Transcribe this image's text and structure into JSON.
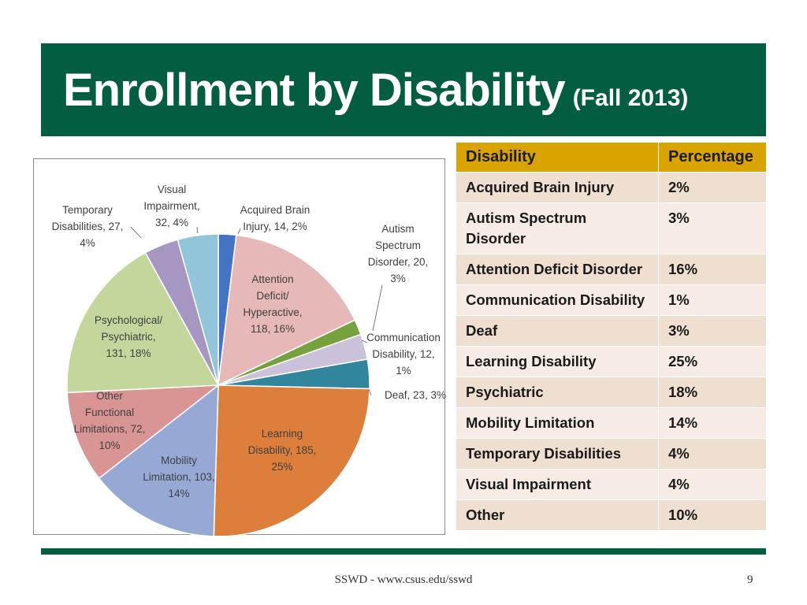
{
  "slide": {
    "title": "Enrollment by Disability",
    "subtitle": "(Fall 2013)",
    "footer": "SSWD - www.csus.edu/sswd",
    "page_number": "9",
    "colors": {
      "title_band": "#035d40",
      "table_header": "#d9a300",
      "row_a": "#eedfd1",
      "row_b": "#f6ece5"
    }
  },
  "chart_data": {
    "type": "pie",
    "legend": "none",
    "slices": [
      {
        "label_lines": [
          "Acquired Brain",
          "Injury, 14, 2%"
        ],
        "category": "Acquired Brain Injury",
        "value": 14,
        "percent": "2%",
        "color": "#4472c4"
      },
      {
        "label_lines": [
          "Attention",
          "Deficit/",
          "Hyperactive,",
          "118, 16%"
        ],
        "category": "Attention Deficit/ Hyperactive",
        "value": 118,
        "percent": "16%",
        "color": "#e6b9b8"
      },
      {
        "label_lines": [
          "Communication",
          "Disability, 12,",
          "1%"
        ],
        "category": "Communication Disability",
        "value": 12,
        "percent": "1%",
        "color": "#77a03f"
      },
      {
        "label_lines": [
          "Autism",
          "Spectrum",
          "Disorder, 20,",
          "3%"
        ],
        "category": "Autism Spectrum Disorder",
        "value": 20,
        "percent": "3%",
        "color": "#ccc1da"
      },
      {
        "label_lines": [
          "Deaf, 23, 3%"
        ],
        "category": "Deaf",
        "value": 23,
        "percent": "3%",
        "color": "#31859c"
      },
      {
        "label_lines": [
          "Learning",
          "Disability, 185,",
          "25%"
        ],
        "category": "Learning Disability",
        "value": 185,
        "percent": "25%",
        "color": "#dd7f3a"
      },
      {
        "label_lines": [
          "Mobility",
          "Limitation, 103,",
          "14%"
        ],
        "category": "Mobility Limitation",
        "value": 103,
        "percent": "14%",
        "color": "#95a9d4"
      },
      {
        "label_lines": [
          "Other",
          "Functional",
          "Limitations, 72,",
          "10%"
        ],
        "category": "Other Functional Limitations",
        "value": 72,
        "percent": "10%",
        "color": "#d99594"
      },
      {
        "label_lines": [
          "Psychological/",
          "Psychiatric,",
          "131, 18%"
        ],
        "category": "Psychological/ Psychiatric",
        "value": 131,
        "percent": "18%",
        "color": "#c3d69b"
      },
      {
        "label_lines": [
          "Temporary",
          "Disabilities, 27,",
          "4%"
        ],
        "category": "Temporary Disabilities",
        "value": 27,
        "percent": "4%",
        "color": "#a697c2"
      },
      {
        "label_lines": [
          "Visual",
          "Impairment,",
          "32, 4%"
        ],
        "category": "Visual Impairment",
        "value": 32,
        "percent": "4%",
        "color": "#92c5da"
      }
    ]
  },
  "table": {
    "headers": [
      "Disability",
      "Percentage"
    ],
    "rows": [
      [
        "Acquired Brain Injury",
        "2%"
      ],
      [
        "Autism Spectrum Disorder",
        "3%"
      ],
      [
        "Attention Deficit Disorder",
        "16%"
      ],
      [
        "Communication Disability",
        "1%"
      ],
      [
        "Deaf",
        "3%"
      ],
      [
        "Learning Disability",
        "25%"
      ],
      [
        "Psychiatric",
        "18%"
      ],
      [
        "Mobility Limitation",
        "14%"
      ],
      [
        "Temporary Disabilities",
        "4%"
      ],
      [
        "Visual Impairment",
        "4%"
      ],
      [
        "Other",
        "10%"
      ]
    ]
  }
}
